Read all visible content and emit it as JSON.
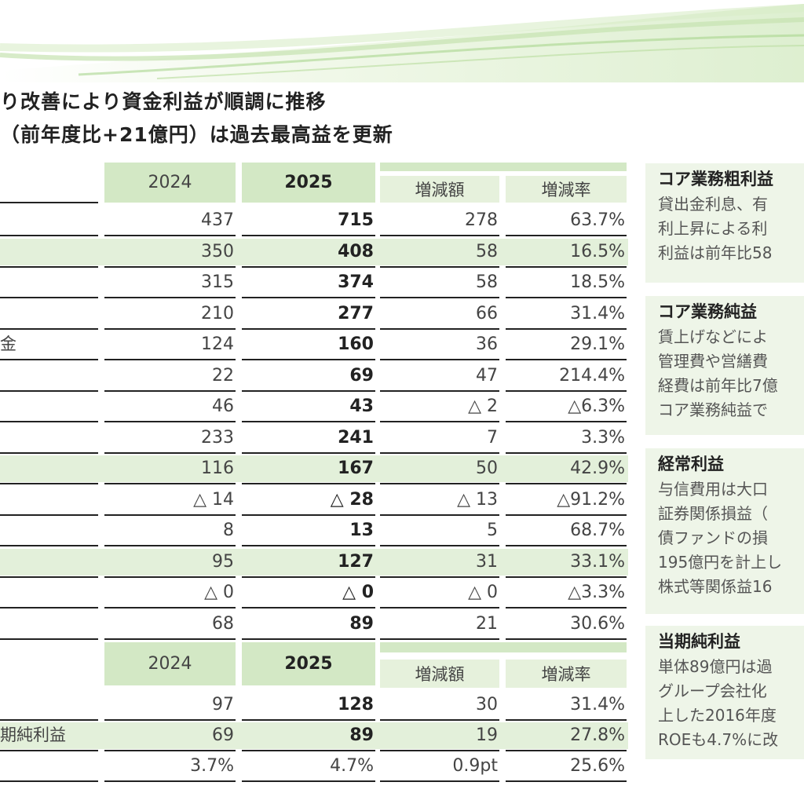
{
  "headline": {
    "line1": "り改善により資金利益が順調に推移",
    "line2": "（前年度比+21億円）は過去最高益を更新"
  },
  "table1": {
    "headers": {
      "y2024": "2024",
      "y2025": "2025",
      "diff": "増減額",
      "rate": "増減率"
    },
    "rows": [
      {
        "label": "",
        "v2024": "437",
        "v2025": "715",
        "diff": "278",
        "rate": "63.7%"
      },
      {
        "label": "",
        "v2024": "350",
        "v2025": "408",
        "diff": "58",
        "rate": "16.5%"
      },
      {
        "label": "",
        "v2024": "315",
        "v2025": "374",
        "diff": "58",
        "rate": "18.5%"
      },
      {
        "label": "",
        "v2024": "210",
        "v2025": "277",
        "diff": "66",
        "rate": "31.4%"
      },
      {
        "label": "金",
        "v2024": "124",
        "v2025": "160",
        "diff": "36",
        "rate": "29.1%"
      },
      {
        "label": "",
        "v2024": "22",
        "v2025": "69",
        "diff": "47",
        "rate": "214.4%"
      },
      {
        "label": "",
        "v2024": "46",
        "v2025": "43",
        "diff": "△ 2",
        "rate": "△6.3%"
      },
      {
        "label": "",
        "v2024": "233",
        "v2025": "241",
        "diff": "7",
        "rate": "3.3%"
      },
      {
        "label": "",
        "v2024": "116",
        "v2025": "167",
        "diff": "50",
        "rate": "42.9%"
      },
      {
        "label": "",
        "v2024": "△ 14",
        "v2025": "△ 28",
        "diff": "△ 13",
        "rate": "△91.2%"
      },
      {
        "label": "",
        "v2024": "8",
        "v2025": "13",
        "diff": "5",
        "rate": "68.7%"
      },
      {
        "label": "",
        "v2024": "95",
        "v2025": "127",
        "diff": "31",
        "rate": "33.1%"
      },
      {
        "label": "",
        "v2024": "△ 0",
        "v2025": "△ 0",
        "diff": "△ 0",
        "rate": "△3.3%"
      },
      {
        "label": "",
        "v2024": "68",
        "v2025": "89",
        "diff": "21",
        "rate": "30.6%"
      }
    ]
  },
  "table2": {
    "headers": {
      "y2024": "2024",
      "y2025": "2025",
      "diff": "増減額",
      "rate": "増減率"
    },
    "rows": [
      {
        "label": "",
        "v2024": "97",
        "v2025": "128",
        "diff": "30",
        "rate": "31.4%"
      },
      {
        "label": "期純利益",
        "v2024": "69",
        "v2025": "89",
        "diff": "19",
        "rate": "27.8%"
      },
      {
        "label": "",
        "v2024": "3.7%",
        "v2025": "4.7%",
        "diff": "0.9pt",
        "rate": "25.6%"
      }
    ]
  },
  "side": [
    {
      "title": "コア業務粗利益",
      "lines": [
        "貸出金利息、有",
        "利上昇による利",
        "利益は前年比58"
      ]
    },
    {
      "title": "コア業務純益",
      "lines": [
        "賃上げなどによ",
        "管理費や営繕費",
        "経費は前年比7億",
        "コア業務純益で"
      ]
    },
    {
      "title": "経常利益",
      "lines": [
        "与信費用は大口",
        "証券関係損益（",
        "債ファンドの損",
        "195億円を計上し",
        "株式等関係益16"
      ]
    },
    {
      "title": "当期純利益",
      "lines": [
        "単体89億円は過",
        "グループ会社化",
        "上した2016年度",
        "ROEも4.7%に改"
      ]
    }
  ]
}
